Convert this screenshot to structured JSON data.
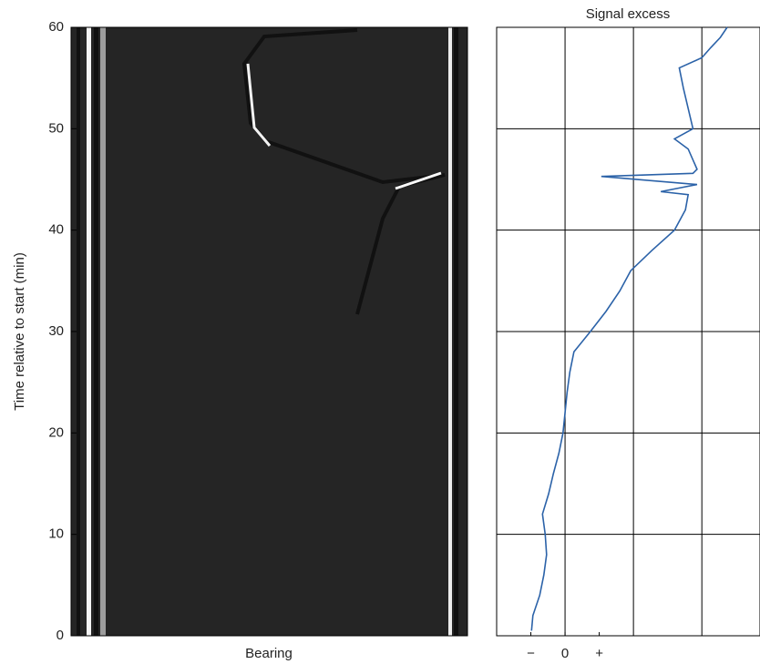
{
  "chart_data": [
    {
      "type": "image",
      "xlabel": "Bearing",
      "ylabel": "Time relative to start (min)",
      "ylim": [
        0,
        60
      ],
      "yticks": [
        0,
        10,
        20,
        30,
        40,
        50,
        60
      ]
    },
    {
      "type": "line",
      "title": "Signal excess",
      "color": "#2b62a8",
      "xlim": [
        -1,
        2.85
      ],
      "xticks": [
        {
          "value": -0.5,
          "label": "−"
        },
        0,
        {
          "value": 0.5,
          "label": "+"
        }
      ],
      "xgrid": [
        0,
        1,
        2
      ],
      "ylim": [
        0,
        60
      ],
      "ygrid": [
        10,
        20,
        30,
        40,
        50
      ],
      "times": [
        0.5,
        2,
        4,
        6,
        8,
        10,
        12,
        14,
        16,
        18,
        20,
        22,
        24,
        26,
        28,
        30,
        32,
        34,
        36,
        38,
        40,
        42,
        43.5,
        43.8,
        44.5,
        45.3,
        45.6,
        46,
        48,
        49,
        50,
        52,
        54,
        56,
        57,
        58,
        59,
        60
      ],
      "values": [
        -0.49,
        -0.47,
        -0.37,
        -0.31,
        -0.27,
        -0.29,
        -0.33,
        -0.24,
        -0.17,
        -0.09,
        -0.03,
        0,
        0.03,
        0.07,
        0.13,
        0.37,
        0.6,
        0.8,
        0.96,
        1.27,
        1.6,
        1.76,
        1.8,
        1.4,
        1.93,
        0.53,
        1.87,
        1.93,
        1.8,
        1.6,
        1.87,
        1.8,
        1.73,
        1.67,
        2,
        2.13,
        2.27,
        2.37
      ]
    }
  ]
}
